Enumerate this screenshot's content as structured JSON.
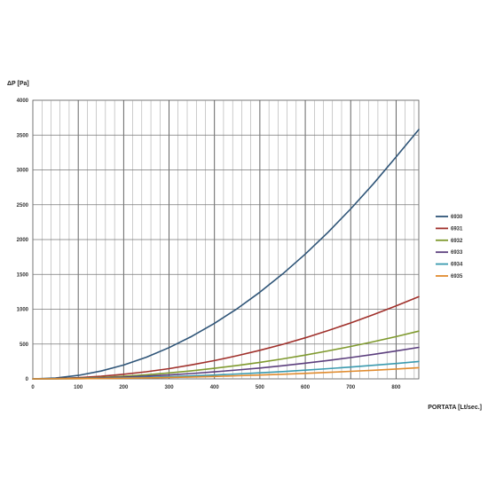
{
  "chart_data": {
    "type": "line",
    "title": "",
    "ylabel": "ΔP [Pa]",
    "xlabel": "PORTATA [Lt/sec.]",
    "xlim": [
      0,
      850
    ],
    "ylim": [
      0,
      4000
    ],
    "x_ticks": [
      0,
      100,
      200,
      300,
      400,
      500,
      600,
      700,
      800
    ],
    "y_ticks": [
      0,
      500,
      1000,
      1500,
      2000,
      2500,
      3000,
      3500,
      4000
    ],
    "grid": true,
    "legend_position": "right",
    "series": [
      {
        "name": "6930",
        "color": "#2f5578",
        "x": [
          0,
          50,
          100,
          150,
          200,
          250,
          300,
          350,
          400,
          450,
          500,
          550,
          600,
          650,
          700,
          750,
          800,
          850
        ],
        "y": [
          0,
          12,
          50,
          112,
          199,
          311,
          448,
          610,
          797,
          1008,
          1245,
          1506,
          1792,
          2103,
          2439,
          2800,
          3186,
          3580
        ]
      },
      {
        "name": "6931",
        "color": "#a0302b",
        "x": [
          0,
          50,
          100,
          150,
          200,
          250,
          300,
          350,
          400,
          450,
          500,
          550,
          600,
          650,
          700,
          750,
          800,
          850
        ],
        "y": [
          0,
          4,
          16,
          37,
          66,
          102,
          147,
          201,
          262,
          332,
          410,
          496,
          590,
          693,
          803,
          922,
          1049,
          1180
        ]
      },
      {
        "name": "6932",
        "color": "#7f9a2e",
        "x": [
          0,
          50,
          100,
          150,
          200,
          250,
          300,
          350,
          400,
          450,
          500,
          550,
          600,
          650,
          700,
          750,
          800,
          850
        ],
        "y": [
          0,
          2,
          10,
          21,
          38,
          59,
          85,
          116,
          152,
          192,
          237,
          287,
          342,
          401,
          465,
          534,
          607,
          685
        ]
      },
      {
        "name": "6933",
        "color": "#5c3f7e",
        "x": [
          0,
          50,
          100,
          150,
          200,
          250,
          300,
          350,
          400,
          450,
          500,
          550,
          600,
          650,
          700,
          750,
          800,
          850
        ],
        "y": [
          0,
          2,
          6,
          14,
          25,
          39,
          56,
          77,
          100,
          127,
          156,
          189,
          225,
          264,
          306,
          352,
          400,
          452
        ]
      },
      {
        "name": "6934",
        "color": "#3a9aaf",
        "x": [
          0,
          50,
          100,
          150,
          200,
          250,
          300,
          350,
          400,
          450,
          500,
          550,
          600,
          650,
          700,
          750,
          800,
          850
        ],
        "y": [
          0,
          1,
          3,
          8,
          14,
          22,
          31,
          42,
          55,
          70,
          86,
          104,
          125,
          146,
          170,
          195,
          221,
          250
        ]
      },
      {
        "name": "6935",
        "color": "#e08b2e",
        "x": [
          0,
          50,
          100,
          150,
          200,
          250,
          300,
          350,
          400,
          450,
          500,
          550,
          600,
          650,
          700,
          750,
          800,
          850
        ],
        "y": [
          0,
          1,
          2,
          5,
          9,
          14,
          20,
          27,
          35,
          44,
          55,
          66,
          79,
          93,
          108,
          124,
          141,
          160
        ]
      }
    ]
  }
}
